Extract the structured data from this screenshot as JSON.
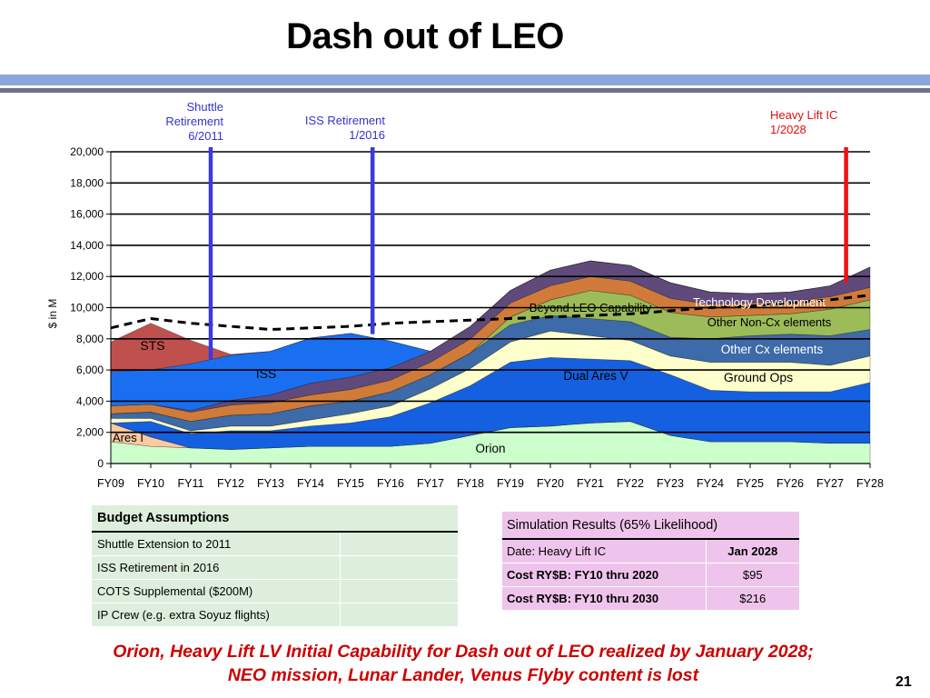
{
  "slide": {
    "title": "Dash out of LEO",
    "page_number": "21",
    "footer_line1": "Orion, Heavy Lift LV Initial Capability for Dash out of LEO realized by January 2028;",
    "footer_line2": "NEO mission, Lunar Lander, Venus Flyby content is lost"
  },
  "annotations": {
    "shuttle": [
      "Shuttle",
      "Retirement",
      "6/2011"
    ],
    "iss": [
      "ISS Retirement",
      "1/2016"
    ],
    "heavy": [
      "Heavy Lift IC",
      "1/2028"
    ]
  },
  "chart_data": {
    "type": "area",
    "stacked": true,
    "ylabel": "$ in M",
    "ylim": [
      0,
      20000
    ],
    "yticks": [
      "0",
      "2,000",
      "4,000",
      "6,000",
      "8,000",
      "10,000",
      "12,000",
      "14,000",
      "16,000",
      "18,000",
      "20,000"
    ],
    "ytick_values": [
      0,
      2000,
      4000,
      6000,
      8000,
      10000,
      12000,
      14000,
      16000,
      18000,
      20000
    ],
    "categories": [
      "FY09",
      "FY10",
      "FY11",
      "FY12",
      "FY13",
      "FY14",
      "FY15",
      "FY16",
      "FY17",
      "FY18",
      "FY19",
      "FY20",
      "FY21",
      "FY22",
      "FY23",
      "FY24",
      "FY25",
      "FY26",
      "FY27",
      "FY28"
    ],
    "grid": true,
    "series": [
      {
        "name": "Orion",
        "color": "#ccffcc",
        "values": [
          1400,
          1100,
          1000,
          900,
          1000,
          1100,
          1100,
          1100,
          1300,
          1800,
          2300,
          2400,
          2600,
          2700,
          1800,
          1400,
          1400,
          1400,
          1300,
          1300
        ]
      },
      {
        "name": "Ares I",
        "color": "#fcc9a0",
        "values": [
          1200,
          600,
          0,
          0,
          0,
          0,
          0,
          0,
          0,
          0,
          0,
          0,
          0,
          0,
          0,
          0,
          0,
          0,
          0,
          0
        ]
      },
      {
        "name": "Dual Ares V",
        "color": "#1560e0",
        "values": [
          0,
          1000,
          900,
          1200,
          1100,
          1300,
          1500,
          1900,
          2600,
          3200,
          4200,
          4400,
          4100,
          3900,
          3900,
          3300,
          3200,
          3200,
          3300,
          3900
        ]
      },
      {
        "name": "Ground Ops",
        "color": "#ffffcc",
        "values": [
          300,
          200,
          200,
          300,
          300,
          400,
          600,
          700,
          900,
          1100,
          1300,
          1700,
          1500,
          1300,
          1200,
          1800,
          1900,
          1900,
          1700,
          1700
        ]
      },
      {
        "name": "Other Cx elements",
        "color": "#3d6aa8",
        "values": [
          300,
          400,
          600,
          700,
          800,
          900,
          800,
          900,
          900,
          1000,
          1100,
          1000,
          1100,
          1200,
          1200,
          1500,
          1700,
          1800,
          1900,
          1700
        ]
      },
      {
        "name": "Other Non-Cx elements",
        "color": "#9cbb59",
        "values": [
          0,
          0,
          0,
          0,
          0,
          0,
          0,
          0,
          0,
          0,
          500,
          1000,
          1800,
          1700,
          1600,
          1400,
          1300,
          1300,
          1700,
          1900
        ]
      },
      {
        "name": "",
        "color": "#d07b3a",
        "values": [
          500,
          500,
          600,
          650,
          700,
          700,
          750,
          750,
          800,
          900,
          900,
          900,
          900,
          900,
          900,
          800,
          800,
          800,
          800,
          800
        ]
      },
      {
        "name": "Technology Development",
        "color": "#604a7c",
        "values": [
          0,
          0,
          100,
          300,
          500,
          750,
          800,
          800,
          700,
          800,
          800,
          1000,
          1000,
          1000,
          1000,
          800,
          600,
          600,
          700,
          1300
        ]
      },
      {
        "name": "Beyond LEO Capability",
        "color": "#604a7c",
        "values": [
          0,
          0,
          0,
          0,
          0,
          0,
          0,
          0,
          0,
          0,
          0,
          0,
          0,
          0,
          0,
          0,
          0,
          0,
          0,
          0
        ]
      },
      {
        "name": "ISS",
        "color": "#1a6ff0",
        "values": [
          2200,
          2200,
          3000,
          2900,
          2800,
          2900,
          2800,
          1700,
          0,
          0,
          0,
          0,
          0,
          0,
          0,
          0,
          0,
          0,
          0,
          0
        ]
      },
      {
        "name": "STS",
        "color": "#c0504d",
        "values": [
          1900,
          3000,
          1500,
          50,
          0,
          0,
          0,
          0,
          0,
          0,
          0,
          0,
          0,
          0,
          0,
          0,
          0,
          0,
          0,
          0
        ]
      }
    ],
    "budget_line": {
      "style": "dashed",
      "values": [
        8700,
        9300,
        9000,
        8800,
        8600,
        8700,
        8800,
        9000,
        9100,
        9200,
        9300,
        9400,
        9500,
        9600,
        9800,
        10000,
        10100,
        10300,
        10500,
        10800
      ]
    },
    "markers": [
      {
        "label": "Shuttle Retirement 6/2011",
        "x": 2.5,
        "color": "#3a3ae0"
      },
      {
        "label": "ISS Retirement 1/2016",
        "x": 6.55,
        "color": "#3a3ae0"
      },
      {
        "label": "Heavy Lift IC 1/2028",
        "x": 18.4,
        "color": "#ee1111"
      }
    ],
    "labels": {
      "sts": "STS",
      "iss": "ISS",
      "ares1": "Ares I",
      "orion": "Orion",
      "dual_ares": "Dual Ares V",
      "ground_ops": "Ground Ops",
      "other_cx": "Other Cx elements",
      "other_noncx": "Other Non-Cx elements",
      "tech_dev": "Technology  Development",
      "beyond_leo": "Beyond LEO Capability"
    }
  },
  "budget_assumptions": {
    "header": "Budget Assumptions",
    "rows": [
      "Shuttle Extension to 2011",
      "ISS Retirement in 2016",
      "COTS Supplemental ($200M)",
      "IP Crew (e.g. extra Soyuz flights)"
    ]
  },
  "simulation_results": {
    "header": "Simulation Results (65% Likelihood)",
    "rows": [
      {
        "label": "Date: Heavy Lift IC",
        "value": "Jan 2028"
      },
      {
        "label": "Cost RY$B: FY10 thru 2020",
        "value": "$95"
      },
      {
        "label": "Cost RY$B: FY10 thru 2030",
        "value": "$216"
      }
    ]
  }
}
